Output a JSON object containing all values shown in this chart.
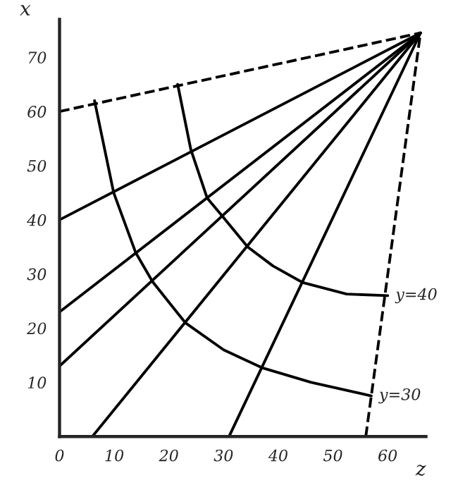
{
  "chart_data": {
    "type": "line",
    "xlabel": "z",
    "ylabel": "x",
    "xlim": [
      0,
      67
    ],
    "ylim": [
      0,
      77
    ],
    "xticks": [
      0,
      10,
      20,
      30,
      40,
      50,
      60
    ],
    "yticks": [
      10,
      20,
      30,
      40,
      50,
      60,
      70
    ],
    "grid": false,
    "legend": false,
    "marker": "none",
    "series": [
      {
        "color": "#000000",
        "line_style": "dashed",
        "x": [
          0,
          66
        ],
        "values": [
          60,
          74.5
        ]
      },
      {
        "color": "#000000",
        "line_style": "solid",
        "x": [
          0,
          66
        ],
        "values": [
          40,
          74.5
        ]
      },
      {
        "color": "#000000",
        "line_style": "solid",
        "x": [
          0,
          66
        ],
        "values": [
          23,
          74.5
        ]
      },
      {
        "color": "#000000",
        "line_style": "solid",
        "x": [
          0,
          66
        ],
        "values": [
          13,
          74.5
        ]
      },
      {
        "color": "#000000",
        "line_style": "solid",
        "x": [
          6,
          66
        ],
        "values": [
          0,
          74.5
        ]
      },
      {
        "color": "#000000",
        "line_style": "solid",
        "x": [
          31,
          66
        ],
        "values": [
          0,
          74.5
        ]
      },
      {
        "color": "#000000",
        "line_style": "dashed",
        "x": [
          56,
          66
        ],
        "values": [
          0,
          74.5
        ]
      },
      {
        "color": "#000000",
        "line_style": "solid",
        "x": [
          6.4,
          9.9,
          13.9,
          17,
          23,
          30,
          37,
          46,
          57
        ],
        "values": [
          62,
          45,
          34,
          28.6,
          21,
          16,
          12.7,
          10,
          7.5
        ]
      },
      {
        "color": "#000000",
        "line_style": "solid",
        "x": [
          21.6,
          24,
          27,
          30,
          34.4,
          39,
          44.5,
          52.5,
          60
        ],
        "values": [
          65,
          53,
          44,
          40.4,
          35,
          31.5,
          28.4,
          26.3,
          26
        ]
      }
    ],
    "annotations": [
      {
        "text": "y=40",
        "x": 60,
        "y": 26
      },
      {
        "text": "y=30",
        "x": 57,
        "y": 7.5
      }
    ]
  }
}
